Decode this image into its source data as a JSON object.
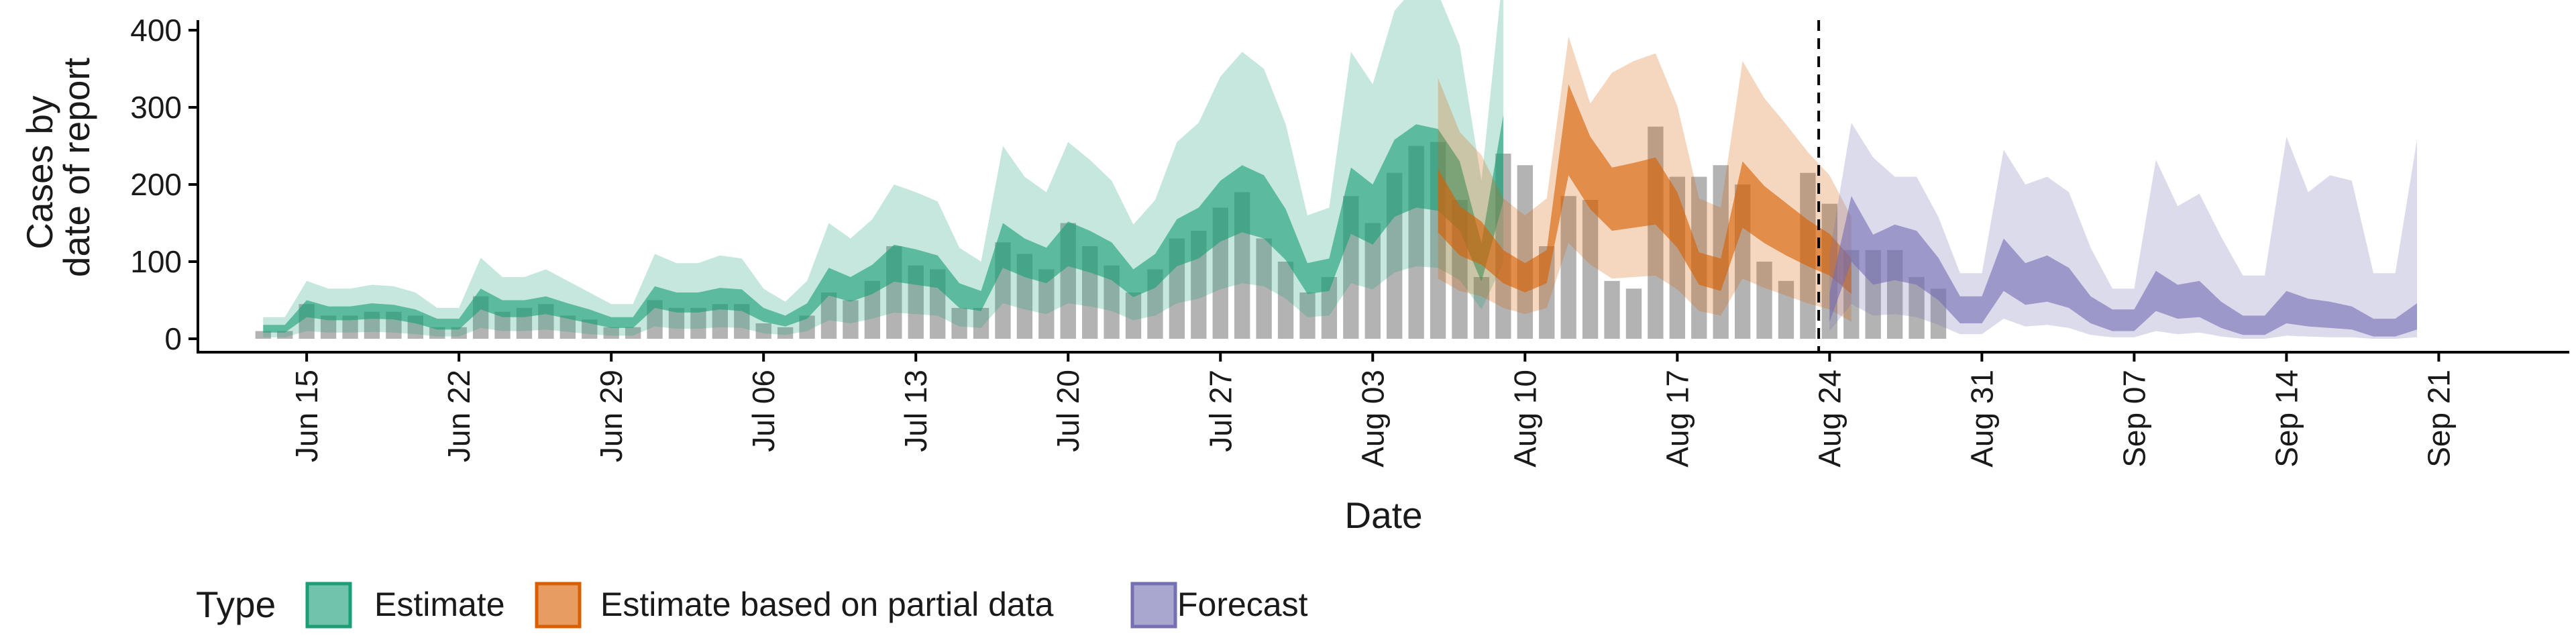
{
  "chart_data": {
    "type": "area",
    "xlabel": "Date",
    "ylabel": [
      "Cases by",
      "date of report"
    ],
    "ylim": [
      0,
      420
    ],
    "yticks": [
      0,
      100,
      200,
      300,
      400
    ],
    "x_start": "2020-06-10",
    "x_end": "2020-09-27",
    "grid": false,
    "legend_position": "bottom",
    "legend_title": "Type",
    "forecast_cutoff": "2020-08-23",
    "xtick_dates": [
      "2020-06-15",
      "2020-06-22",
      "2020-06-29",
      "2020-07-06",
      "2020-07-13",
      "2020-07-20",
      "2020-07-27",
      "2020-08-03",
      "2020-08-10",
      "2020-08-17",
      "2020-08-24",
      "2020-08-31",
      "2020-09-07",
      "2020-09-14",
      "2020-09-21"
    ],
    "xtick_labels": [
      "Jun 15",
      "Jun 22",
      "Jun 29",
      "Jul 06",
      "Jul 13",
      "Jul 20",
      "Jul 27",
      "Aug 03",
      "Aug 10",
      "Aug 17",
      "Aug 24",
      "Aug 31",
      "Sep 07",
      "Sep 14",
      "Sep 21"
    ],
    "colors": {
      "Estimate": "#1b9e77",
      "Estimate based on partial data": "#d95f02",
      "Forecast": "#7570b3",
      "bars": "#b3b3b3",
      "axis": "#000000"
    },
    "observed": {
      "start": "2020-06-13",
      "values": [
        10,
        10,
        45,
        30,
        30,
        35,
        35,
        30,
        15,
        15,
        55,
        35,
        40,
        45,
        30,
        25,
        15,
        15,
        50,
        40,
        40,
        45,
        45,
        20,
        15,
        30,
        60,
        50,
        75,
        120,
        95,
        90,
        40,
        40,
        125,
        110,
        90,
        150,
        120,
        95,
        60,
        90,
        130,
        140,
        170,
        190,
        130,
        100,
        60,
        80,
        185,
        150,
        215,
        250,
        255,
        180,
        80,
        240,
        225,
        120,
        185,
        180,
        75,
        65,
        275,
        210,
        210,
        225,
        200,
        100,
        75,
        215,
        175,
        115,
        115,
        115,
        80,
        65
      ]
    },
    "series": [
      {
        "name": "Estimate",
        "start": "2020-06-13",
        "median": [
          12,
          12,
          38,
          32,
          32,
          35,
          33,
          28,
          18,
          18,
          50,
          38,
          38,
          42,
          35,
          28,
          20,
          20,
          52,
          45,
          45,
          50,
          48,
          30,
          22,
          35,
          72,
          62,
          75,
          95,
          90,
          85,
          55,
          48,
          118,
          102,
          92,
          120,
          110,
          98,
          70,
          85,
          120,
          132,
          160,
          175,
          165,
          130,
          75,
          80,
          172,
          155,
          200,
          215,
          210,
          178,
          95,
          225
        ],
        "lo50": [
          8,
          8,
          28,
          24,
          24,
          26,
          25,
          20,
          12,
          12,
          38,
          28,
          28,
          32,
          26,
          20,
          14,
          14,
          40,
          34,
          34,
          38,
          36,
          22,
          16,
          26,
          56,
          48,
          58,
          74,
          70,
          66,
          40,
          36,
          92,
          80,
          72,
          94,
          86,
          76,
          54,
          66,
          94,
          104,
          126,
          138,
          130,
          102,
          58,
          62,
          136,
          122,
          158,
          170,
          166,
          140,
          74,
          178
        ],
        "hi50": [
          18,
          18,
          50,
          42,
          42,
          46,
          44,
          38,
          26,
          26,
          65,
          50,
          50,
          55,
          46,
          38,
          28,
          28,
          68,
          60,
          60,
          66,
          64,
          40,
          30,
          46,
          92,
          80,
          96,
          122,
          116,
          108,
          72,
          62,
          150,
          130,
          118,
          152,
          140,
          125,
          90,
          110,
          155,
          170,
          205,
          225,
          212,
          168,
          98,
          104,
          222,
          200,
          258,
          278,
          272,
          230,
          124,
          290
        ],
        "lo90": [
          2,
          2,
          10,
          8,
          8,
          9,
          8,
          6,
          3,
          3,
          14,
          10,
          10,
          12,
          9,
          6,
          4,
          4,
          16,
          13,
          13,
          15,
          14,
          7,
          5,
          10,
          24,
          20,
          26,
          34,
          32,
          30,
          16,
          14,
          46,
          38,
          32,
          46,
          42,
          36,
          24,
          30,
          46,
          52,
          64,
          72,
          68,
          52,
          28,
          30,
          72,
          64,
          86,
          94,
          92,
          76,
          38,
          98
        ],
        "hi90": [
          28,
          28,
          75,
          65,
          65,
          70,
          68,
          60,
          40,
          40,
          105,
          80,
          80,
          90,
          75,
          60,
          45,
          45,
          110,
          98,
          98,
          108,
          104,
          65,
          48,
          75,
          150,
          130,
          155,
          200,
          190,
          178,
          118,
          100,
          250,
          210,
          190,
          255,
          232,
          205,
          148,
          180,
          255,
          280,
          340,
          372,
          350,
          278,
          160,
          170,
          372,
          330,
          425,
          458,
          448,
          380,
          205,
          478
        ]
      },
      {
        "name": "Estimate based on partial data",
        "start": "2020-08-06",
        "median": [
          175,
          138,
          122,
          92,
          78,
          92,
          265,
          210,
          178,
          182,
          188,
          152,
          90,
          82,
          182,
          158,
          140,
          122,
          108,
          80
        ],
        "lo50": [
          138,
          108,
          96,
          72,
          60,
          72,
          212,
          168,
          140,
          144,
          148,
          118,
          70,
          62,
          144,
          124,
          108,
          94,
          82,
          58
        ],
        "hi50": [
          220,
          172,
          152,
          115,
          98,
          115,
          330,
          262,
          222,
          228,
          235,
          190,
          112,
          104,
          230,
          198,
          176,
          154,
          136,
          104
        ],
        "lo90": [
          78,
          62,
          55,
          40,
          32,
          40,
          124,
          96,
          78,
          80,
          82,
          64,
          36,
          30,
          78,
          66,
          56,
          46,
          38,
          22
        ],
        "hi90": [
          338,
          268,
          238,
          182,
          160,
          182,
          392,
          305,
          345,
          360,
          370,
          302,
          182,
          170,
          360,
          312,
          278,
          242,
          212,
          158
        ]
      },
      {
        "name": "Forecast",
        "start": "2020-08-24",
        "median": [
          42,
          142,
          102,
          112,
          105,
          78,
          38,
          38,
          95,
          72,
          80,
          68,
          38,
          25,
          25,
          62,
          48,
          52,
          32,
          18,
          18,
          42,
          35,
          32,
          28,
          15,
          15,
          30
        ],
        "lo50": [
          22,
          100,
          70,
          76,
          70,
          50,
          20,
          20,
          62,
          44,
          48,
          40,
          20,
          10,
          10,
          36,
          26,
          28,
          14,
          5,
          5,
          20,
          16,
          14,
          12,
          3,
          3,
          12
        ],
        "hi50": [
          60,
          185,
          135,
          148,
          140,
          105,
          55,
          55,
          130,
          98,
          108,
          92,
          55,
          38,
          38,
          88,
          70,
          75,
          48,
          30,
          30,
          62,
          52,
          48,
          42,
          26,
          26,
          46
        ],
        "lo90": [
          10,
          45,
          30,
          32,
          28,
          18,
          6,
          6,
          26,
          16,
          18,
          14,
          5,
          2,
          2,
          10,
          6,
          8,
          3,
          0,
          0,
          4,
          3,
          2,
          2,
          0,
          0,
          2
        ],
        "hi90": [
          110,
          280,
          235,
          210,
          210,
          158,
          85,
          85,
          245,
          200,
          210,
          190,
          118,
          65,
          65,
          232,
          172,
          188,
          132,
          82,
          82,
          262,
          190,
          212,
          205,
          85,
          85,
          258
        ]
      }
    ]
  }
}
